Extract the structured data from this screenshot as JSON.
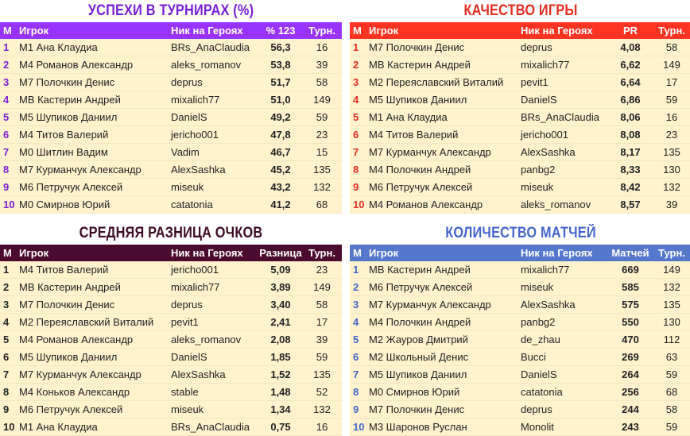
{
  "colors": {
    "row_bg": "#fff2cc",
    "success_title": "#7a1fd6",
    "success_header": "#9933ff",
    "quality_title": "#e52d20",
    "quality_header": "#ff3322",
    "diff_title": "#3d0b24",
    "diff_header": "#4a0b2e",
    "matches_title": "#4466cc",
    "matches_header": "#5577cc"
  },
  "panels": {
    "success": {
      "title": "УСПЕХИ В ТУРНИРАХ (%)",
      "headers": {
        "m": "М",
        "player": "Игрок",
        "nick": "Ник на Героях",
        "value": "% 123",
        "turns": "Турн."
      },
      "rows": [
        {
          "rank": "1",
          "player": "М1 Ана Клаудиа",
          "nick": "BRs_AnaClaudia",
          "value": "56,3",
          "turns": "16"
        },
        {
          "rank": "2",
          "player": "М4 Романов Александр",
          "nick": "aleks_romanov",
          "value": "53,8",
          "turns": "39"
        },
        {
          "rank": "3",
          "player": "М7 Полочкин Денис",
          "nick": "deprus",
          "value": "51,7",
          "turns": "58"
        },
        {
          "rank": "4",
          "player": "МВ Кастерин Андрей",
          "nick": "mixalich77",
          "value": "51,0",
          "turns": "149"
        },
        {
          "rank": "5",
          "player": "М5 Шупиков Даниил",
          "nick": "DanielS",
          "value": "49,2",
          "turns": "59"
        },
        {
          "rank": "6",
          "player": "М4 Титов Валерий",
          "nick": "jericho001",
          "value": "47,8",
          "turns": "23"
        },
        {
          "rank": "7",
          "player": "М0 Шитлин Вадим",
          "nick": "Vadim",
          "value": "46,7",
          "turns": "15"
        },
        {
          "rank": "8",
          "player": "М7 Курманчук Александр",
          "nick": "AlexSashka",
          "value": "45,2",
          "turns": "135"
        },
        {
          "rank": "9",
          "player": "М6 Петручук Алексей",
          "nick": "miseuk",
          "value": "43,2",
          "turns": "132"
        },
        {
          "rank": "10",
          "player": "М0 Смирнов Юрий",
          "nick": "catatonia",
          "value": "41,2",
          "turns": "68"
        }
      ]
    },
    "quality": {
      "title": "КАЧЕСТВО ИГРЫ",
      "headers": {
        "m": "М",
        "player": "Игрок",
        "nick": "Ник на Героях",
        "value": "PR",
        "turns": "Турн."
      },
      "rows": [
        {
          "rank": "1",
          "player": "М7 Полочкин Денис",
          "nick": "deprus",
          "value": "4,08",
          "turns": "58"
        },
        {
          "rank": "2",
          "player": "МВ Кастерин Андрей",
          "nick": "mixalich77",
          "value": "6,62",
          "turns": "149"
        },
        {
          "rank": "3",
          "player": "М2 Переяславский Виталий",
          "nick": "pevit1",
          "value": "6,64",
          "turns": "17"
        },
        {
          "rank": "4",
          "player": "М5 Шупиков Даниил",
          "nick": "DanielS",
          "value": "6,86",
          "turns": "59"
        },
        {
          "rank": "5",
          "player": "М1 Ана Клаудиа",
          "nick": "BRs_AnaClaudia",
          "value": "8,06",
          "turns": "16"
        },
        {
          "rank": "6",
          "player": "М4 Титов Валерий",
          "nick": "jericho001",
          "value": "8,08",
          "turns": "23"
        },
        {
          "rank": "7",
          "player": "М7 Курманчук Александр",
          "nick": "AlexSashka",
          "value": "8,17",
          "turns": "135"
        },
        {
          "rank": "8",
          "player": "М4 Полочкин Андрей",
          "nick": "panbg2",
          "value": "8,33",
          "turns": "130"
        },
        {
          "rank": "9",
          "player": "М6 Петручук Алексей",
          "nick": "miseuk",
          "value": "8,42",
          "turns": "132"
        },
        {
          "rank": "10",
          "player": "М4 Романов Александр",
          "nick": "aleks_romanov",
          "value": "8,57",
          "turns": "39"
        }
      ]
    },
    "diff": {
      "title": "СРЕДНЯЯ РАЗНИЦА ОЧКОВ",
      "headers": {
        "m": "М",
        "player": "Игрок",
        "nick": "Ник на Героях",
        "value": "Разница",
        "turns": "Турн."
      },
      "rows": [
        {
          "rank": "1",
          "player": "М4 Титов Валерий",
          "nick": "jericho001",
          "value": "5,09",
          "turns": "23"
        },
        {
          "rank": "2",
          "player": "МВ Кастерин Андрей",
          "nick": "mixalich77",
          "value": "3,89",
          "turns": "149"
        },
        {
          "rank": "3",
          "player": "М7 Полочкин Денис",
          "nick": "deprus",
          "value": "3,40",
          "turns": "58"
        },
        {
          "rank": "4",
          "player": "М2 Переяславский Виталий",
          "nick": "pevit1",
          "value": "2,41",
          "turns": "17"
        },
        {
          "rank": "5",
          "player": "М4 Романов Александр",
          "nick": "aleks_romanov",
          "value": "2,08",
          "turns": "39"
        },
        {
          "rank": "6",
          "player": "М5 Шупиков Даниил",
          "nick": "DanielS",
          "value": "1,85",
          "turns": "59"
        },
        {
          "rank": "7",
          "player": "М7 Курманчук Александр",
          "nick": "AlexSashka",
          "value": "1,52",
          "turns": "135"
        },
        {
          "rank": "8",
          "player": "М4 Коньков Александр",
          "nick": "stable",
          "value": "1,48",
          "turns": "52"
        },
        {
          "rank": "9",
          "player": "М6 Петручук Алексей",
          "nick": "miseuk",
          "value": "1,34",
          "turns": "132"
        },
        {
          "rank": "10",
          "player": "М1 Ана Клаудиа",
          "nick": "BRs_AnaClaudia",
          "value": "0,75",
          "turns": "16"
        }
      ]
    },
    "matches": {
      "title": "КОЛИЧЕСТВО МАТЧЕЙ",
      "headers": {
        "m": "М",
        "player": "Игрок",
        "nick": "Ник на Героях",
        "value": "Матчей",
        "turns": "Турн."
      },
      "rows": [
        {
          "rank": "1",
          "player": "МВ Кастерин Андрей",
          "nick": "mixalich77",
          "value": "669",
          "turns": "149"
        },
        {
          "rank": "2",
          "player": "М6 Петручук Алексей",
          "nick": "miseuk",
          "value": "585",
          "turns": "132"
        },
        {
          "rank": "3",
          "player": "М7 Курманчук Александр",
          "nick": "AlexSashka",
          "value": "575",
          "turns": "135"
        },
        {
          "rank": "4",
          "player": "М4 Полочкин Андрей",
          "nick": "panbg2",
          "value": "550",
          "turns": "130"
        },
        {
          "rank": "5",
          "player": "М2 Жауров Дмитрий",
          "nick": "de_zhau",
          "value": "470",
          "turns": "112"
        },
        {
          "rank": "6",
          "player": "М2 Школьный Денис",
          "nick": "Bucci",
          "value": "269",
          "turns": "63"
        },
        {
          "rank": "7",
          "player": "М5 Шупиков Даниил",
          "nick": "DanielS",
          "value": "264",
          "turns": "59"
        },
        {
          "rank": "8",
          "player": "М0 Смирнов Юрий",
          "nick": "catatonia",
          "value": "256",
          "turns": "68"
        },
        {
          "rank": "9",
          "player": "М7 Полочкин Денис",
          "nick": "deprus",
          "value": "244",
          "turns": "58"
        },
        {
          "rank": "10",
          "player": "М3 Шаронов Руслан",
          "nick": "Monolit",
          "value": "243",
          "turns": "59"
        }
      ]
    }
  }
}
